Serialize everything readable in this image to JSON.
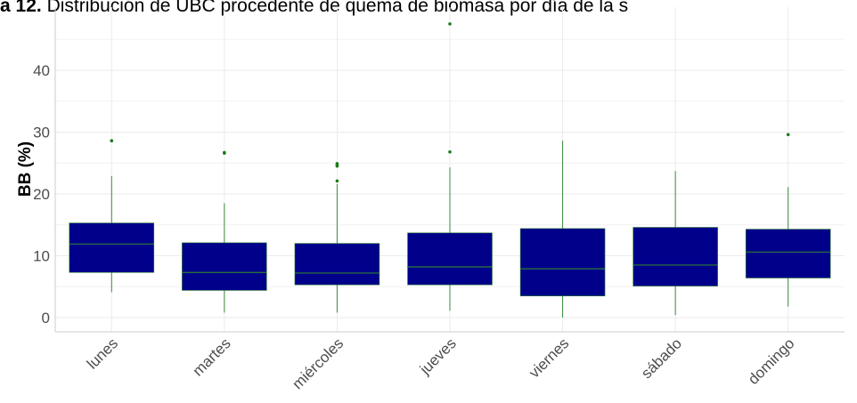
{
  "chart_data": {
    "type": "box",
    "title_prefix": "a 12.",
    "title": "Distribución de UBC procedente de quema de biomasa por día de la s",
    "xlabel": "",
    "ylabel": "BB (%)",
    "ylim": [
      -2,
      49
    ],
    "yticks": [
      0,
      10,
      20,
      30,
      40
    ],
    "grid": true,
    "colors": {
      "box_fill": "#00008B",
      "median": "#2E7D32",
      "whisker": "#3a8a3a",
      "outlier": "#1B7A1B"
    },
    "categories": [
      "lunes",
      "martes",
      "miércoles",
      "jueves",
      "viernes",
      "sábado",
      "domingo"
    ],
    "boxes": [
      {
        "q1": 7.3,
        "median": 11.9,
        "q3": 15.3,
        "whisker_low": 4.1,
        "whisker_high": 22.9,
        "outliers": [
          28.6
        ]
      },
      {
        "q1": 4.4,
        "median": 7.3,
        "q3": 12.1,
        "whisker_low": 0.8,
        "whisker_high": 18.5,
        "outliers": [
          26.6,
          26.7
        ]
      },
      {
        "q1": 5.3,
        "median": 7.2,
        "q3": 12.0,
        "whisker_low": 0.8,
        "whisker_high": 21.6,
        "outliers": [
          22.1,
          24.5,
          24.7,
          24.9
        ]
      },
      {
        "q1": 5.3,
        "median": 8.2,
        "q3": 13.7,
        "whisker_low": 1.1,
        "whisker_high": 24.3,
        "outliers": [
          26.8,
          47.5
        ]
      },
      {
        "q1": 3.5,
        "median": 7.9,
        "q3": 14.4,
        "whisker_low": 0.0,
        "whisker_high": 28.6,
        "outliers": []
      },
      {
        "q1": 5.1,
        "median": 8.5,
        "q3": 14.6,
        "whisker_low": 0.4,
        "whisker_high": 23.7,
        "outliers": []
      },
      {
        "q1": 6.4,
        "median": 10.6,
        "q3": 14.3,
        "whisker_low": 1.8,
        "whisker_high": 21.1,
        "outliers": [
          29.6
        ]
      }
    ]
  }
}
